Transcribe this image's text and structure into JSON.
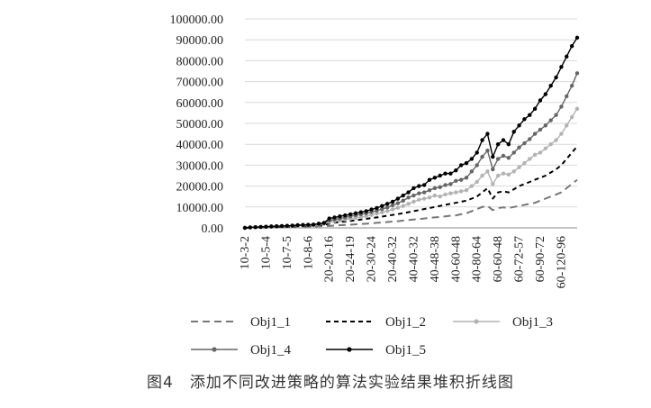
{
  "caption": "图4　添加不同改进策略的算法实验结果堆积折线图",
  "chart_data": {
    "type": "line",
    "stacked": true,
    "title": "",
    "xlabel": "",
    "ylabel": "",
    "ylim": [
      0,
      100000
    ],
    "ytick_step": 10000,
    "ytick_format_decimals": 2,
    "grid": true,
    "legend_position": "bottom",
    "x_ticks": [
      "10-3-2",
      "10-5-4",
      "10-7-5",
      "10-8-6",
      "20-20-16",
      "20-24-19",
      "20-30-24",
      "20-40-32",
      "40-40-32",
      "40-48-38",
      "40-60-48",
      "40-80-64",
      "60-60-48",
      "60-72-57",
      "60-90-72",
      "60-120-96"
    ],
    "x_count": 64,
    "series": [
      {
        "name": "Obj1_1",
        "style": "dashed",
        "color": "#777777",
        "marker": false,
        "values": [
          0,
          80,
          150,
          200,
          250,
          300,
          350,
          400,
          450,
          500,
          550,
          600,
          650,
          700,
          750,
          800,
          900,
          1100,
          1300,
          1400,
          1500,
          1700,
          1900,
          2000,
          2200,
          2400,
          2600,
          2800,
          3000,
          3200,
          3500,
          3800,
          4000,
          4200,
          4500,
          4800,
          5000,
          5200,
          5500,
          5800,
          6000,
          6500,
          7000,
          8000,
          9000,
          10000,
          10500,
          8500,
          9500,
          9800,
          9500,
          10000,
          10500,
          11000,
          11500,
          12000,
          13000,
          14000,
          15000,
          16000,
          17000,
          19000,
          21000,
          23000
        ]
      },
      {
        "name": "Obj1_2",
        "style": "dashed",
        "color": "#000000",
        "marker": false,
        "values": [
          0,
          100,
          200,
          300,
          350,
          400,
          450,
          500,
          600,
          700,
          800,
          900,
          1000,
          1100,
          1300,
          1500,
          2000,
          2500,
          2800,
          3000,
          3300,
          3600,
          4000,
          4300,
          4700,
          5000,
          5400,
          5800,
          6200,
          6600,
          7000,
          7500,
          8000,
          8500,
          9000,
          9500,
          10000,
          10500,
          11000,
          11500,
          12000,
          12500,
          13000,
          14000,
          15000,
          17000,
          19000,
          14000,
          17000,
          17500,
          17000,
          18500,
          20000,
          21000,
          22000,
          23000,
          24000,
          25000,
          26500,
          28000,
          30000,
          33000,
          36000,
          39000
        ]
      },
      {
        "name": "Obj1_3",
        "style": "solid",
        "color": "#b3b3b3",
        "marker": true,
        "values": [
          0,
          150,
          250,
          350,
          400,
          500,
          600,
          700,
          800,
          900,
          1000,
          1100,
          1200,
          1300,
          1600,
          1900,
          2800,
          3200,
          3600,
          4000,
          4400,
          4800,
          5200,
          5600,
          6200,
          6800,
          7400,
          8000,
          8800,
          9600,
          10500,
          11500,
          12500,
          13500,
          14000,
          14500,
          15500,
          15000,
          16000,
          16500,
          17000,
          17500,
          18000,
          20000,
          22000,
          25000,
          27000,
          21000,
          25000,
          26000,
          25500,
          27000,
          29000,
          31000,
          33000,
          35000,
          36000,
          38000,
          40000,
          42000,
          45000,
          49000,
          53000,
          57000
        ]
      },
      {
        "name": "Obj1_4",
        "style": "solid",
        "color": "#666666",
        "marker": true,
        "values": [
          0,
          200,
          300,
          400,
          500,
          600,
          700,
          800,
          900,
          1000,
          1200,
          1300,
          1400,
          1500,
          1900,
          2200,
          3500,
          4000,
          4500,
          5000,
          5500,
          6000,
          6500,
          7000,
          7600,
          8200,
          9000,
          9800,
          10800,
          11800,
          13000,
          14500,
          15500,
          16500,
          17000,
          18000,
          19000,
          19500,
          20500,
          21000,
          22500,
          23000,
          24000,
          27000,
          30000,
          34000,
          37000,
          28000,
          33000,
          34500,
          33500,
          36000,
          38500,
          40500,
          42500,
          45000,
          47000,
          49000,
          51500,
          54000,
          58000,
          63000,
          68000,
          74000
        ]
      },
      {
        "name": "Obj1_5",
        "style": "solid",
        "color": "#000000",
        "marker": true,
        "values": [
          0,
          250,
          350,
          450,
          550,
          700,
          800,
          900,
          1000,
          1100,
          1300,
          1400,
          1500,
          1600,
          2000,
          2400,
          4500,
          5000,
          5500,
          6000,
          6500,
          7000,
          7500,
          8000,
          8800,
          9500,
          10500,
          11500,
          12500,
          14000,
          15500,
          17000,
          19000,
          20000,
          20500,
          23000,
          24000,
          25000,
          26000,
          26000,
          27500,
          30000,
          31000,
          33000,
          36000,
          42000,
          45000,
          34000,
          40000,
          42000,
          40000,
          46000,
          49000,
          52000,
          54000,
          57000,
          61000,
          64000,
          68000,
          72000,
          77000,
          82000,
          87000,
          91000
        ]
      }
    ]
  }
}
